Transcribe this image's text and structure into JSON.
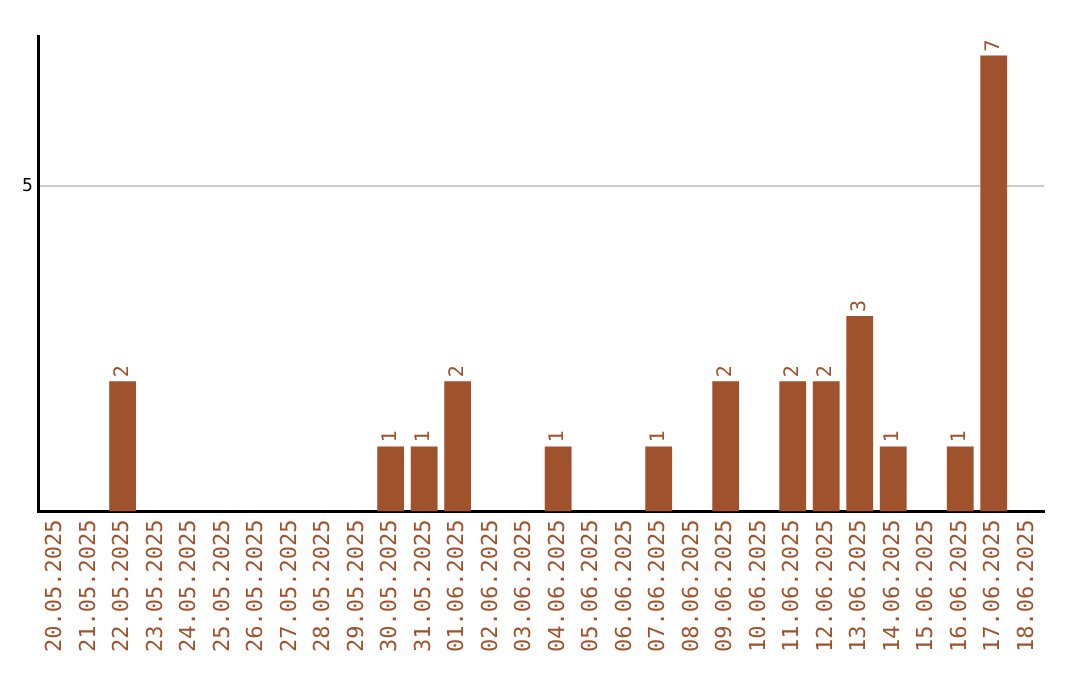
{
  "chart_data": {
    "type": "bar",
    "categories": [
      "20.05.2025",
      "21.05.2025",
      "22.05.2025",
      "23.05.2025",
      "24.05.2025",
      "25.05.2025",
      "26.05.2025",
      "27.05.2025",
      "28.05.2025",
      "29.05.2025",
      "30.05.2025",
      "31.05.2025",
      "01.06.2025",
      "02.06.2025",
      "03.06.2025",
      "04.06.2025",
      "05.06.2025",
      "06.06.2025",
      "07.06.2025",
      "08.06.2025",
      "09.06.2025",
      "10.06.2025",
      "11.06.2025",
      "12.06.2025",
      "13.06.2025",
      "14.06.2025",
      "15.06.2025",
      "16.06.2025",
      "17.06.2025",
      "18.06.2025"
    ],
    "values": [
      0,
      0,
      2,
      0,
      0,
      0,
      0,
      0,
      0,
      0,
      1,
      1,
      2,
      0,
      0,
      1,
      0,
      0,
      1,
      0,
      2,
      0,
      2,
      2,
      3,
      1,
      0,
      1,
      7,
      0
    ],
    "value_labels": [
      null,
      null,
      "2",
      null,
      null,
      null,
      null,
      null,
      null,
      null,
      "1",
      "1",
      "2",
      null,
      null,
      "1",
      null,
      null,
      "1",
      null,
      "2",
      null,
      "2",
      "2",
      "3",
      "1",
      null,
      "1",
      "7",
      null
    ],
    "color": "#a0522d",
    "ylim": [
      0,
      7.3
    ],
    "yticks": [
      5
    ],
    "grid": "y",
    "legend": false
  }
}
